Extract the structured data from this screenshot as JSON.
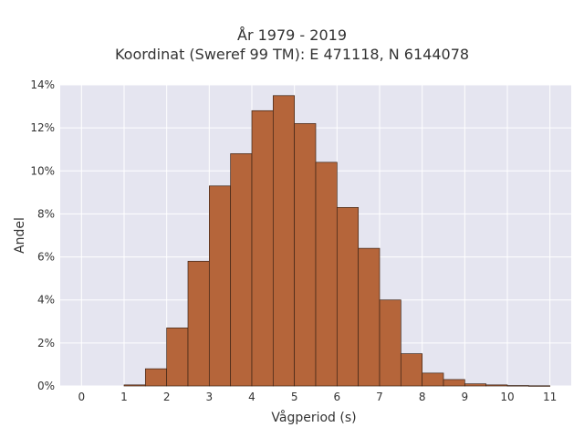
{
  "chart_data": {
    "type": "bar",
    "title_lines": [
      "År 1979 - 2019",
      "Koordinat (Sweref 99 TM): E 471118, N 6144078"
    ],
    "xlabel": "Vågperiod (s)",
    "ylabel": "Andel",
    "x_ticks": [
      "0",
      "1",
      "2",
      "3",
      "4",
      "5",
      "6",
      "7",
      "8",
      "9",
      "10",
      "11"
    ],
    "y_ticks": [
      "0%",
      "2%",
      "4%",
      "6%",
      "8%",
      "10%",
      "12%",
      "14%"
    ],
    "xlim": [
      -0.5,
      11.5
    ],
    "ylim": [
      0,
      14
    ],
    "bin_width": 0.5,
    "bins": [
      {
        "x0": 1.0,
        "value": 0.05
      },
      {
        "x0": 1.5,
        "value": 0.8
      },
      {
        "x0": 2.0,
        "value": 2.7
      },
      {
        "x0": 2.5,
        "value": 5.8
      },
      {
        "x0": 3.0,
        "value": 9.3
      },
      {
        "x0": 3.5,
        "value": 10.8
      },
      {
        "x0": 4.0,
        "value": 12.8
      },
      {
        "x0": 4.5,
        "value": 13.5
      },
      {
        "x0": 5.0,
        "value": 12.2
      },
      {
        "x0": 5.5,
        "value": 10.4
      },
      {
        "x0": 6.0,
        "value": 8.3
      },
      {
        "x0": 6.5,
        "value": 6.4
      },
      {
        "x0": 7.0,
        "value": 4.0
      },
      {
        "x0": 7.5,
        "value": 1.5
      },
      {
        "x0": 8.0,
        "value": 0.6
      },
      {
        "x0": 8.5,
        "value": 0.3
      },
      {
        "x0": 9.0,
        "value": 0.1
      },
      {
        "x0": 9.5,
        "value": 0.05
      },
      {
        "x0": 10.0,
        "value": 0.02
      },
      {
        "x0": 10.5,
        "value": 0.01
      }
    ],
    "grid": true,
    "colors": {
      "bar_fill": "#b5653a",
      "bar_stroke": "#3d2416",
      "plot_bg": "#e5e5f0",
      "grid": "#ffffff",
      "text": "#333333"
    }
  }
}
